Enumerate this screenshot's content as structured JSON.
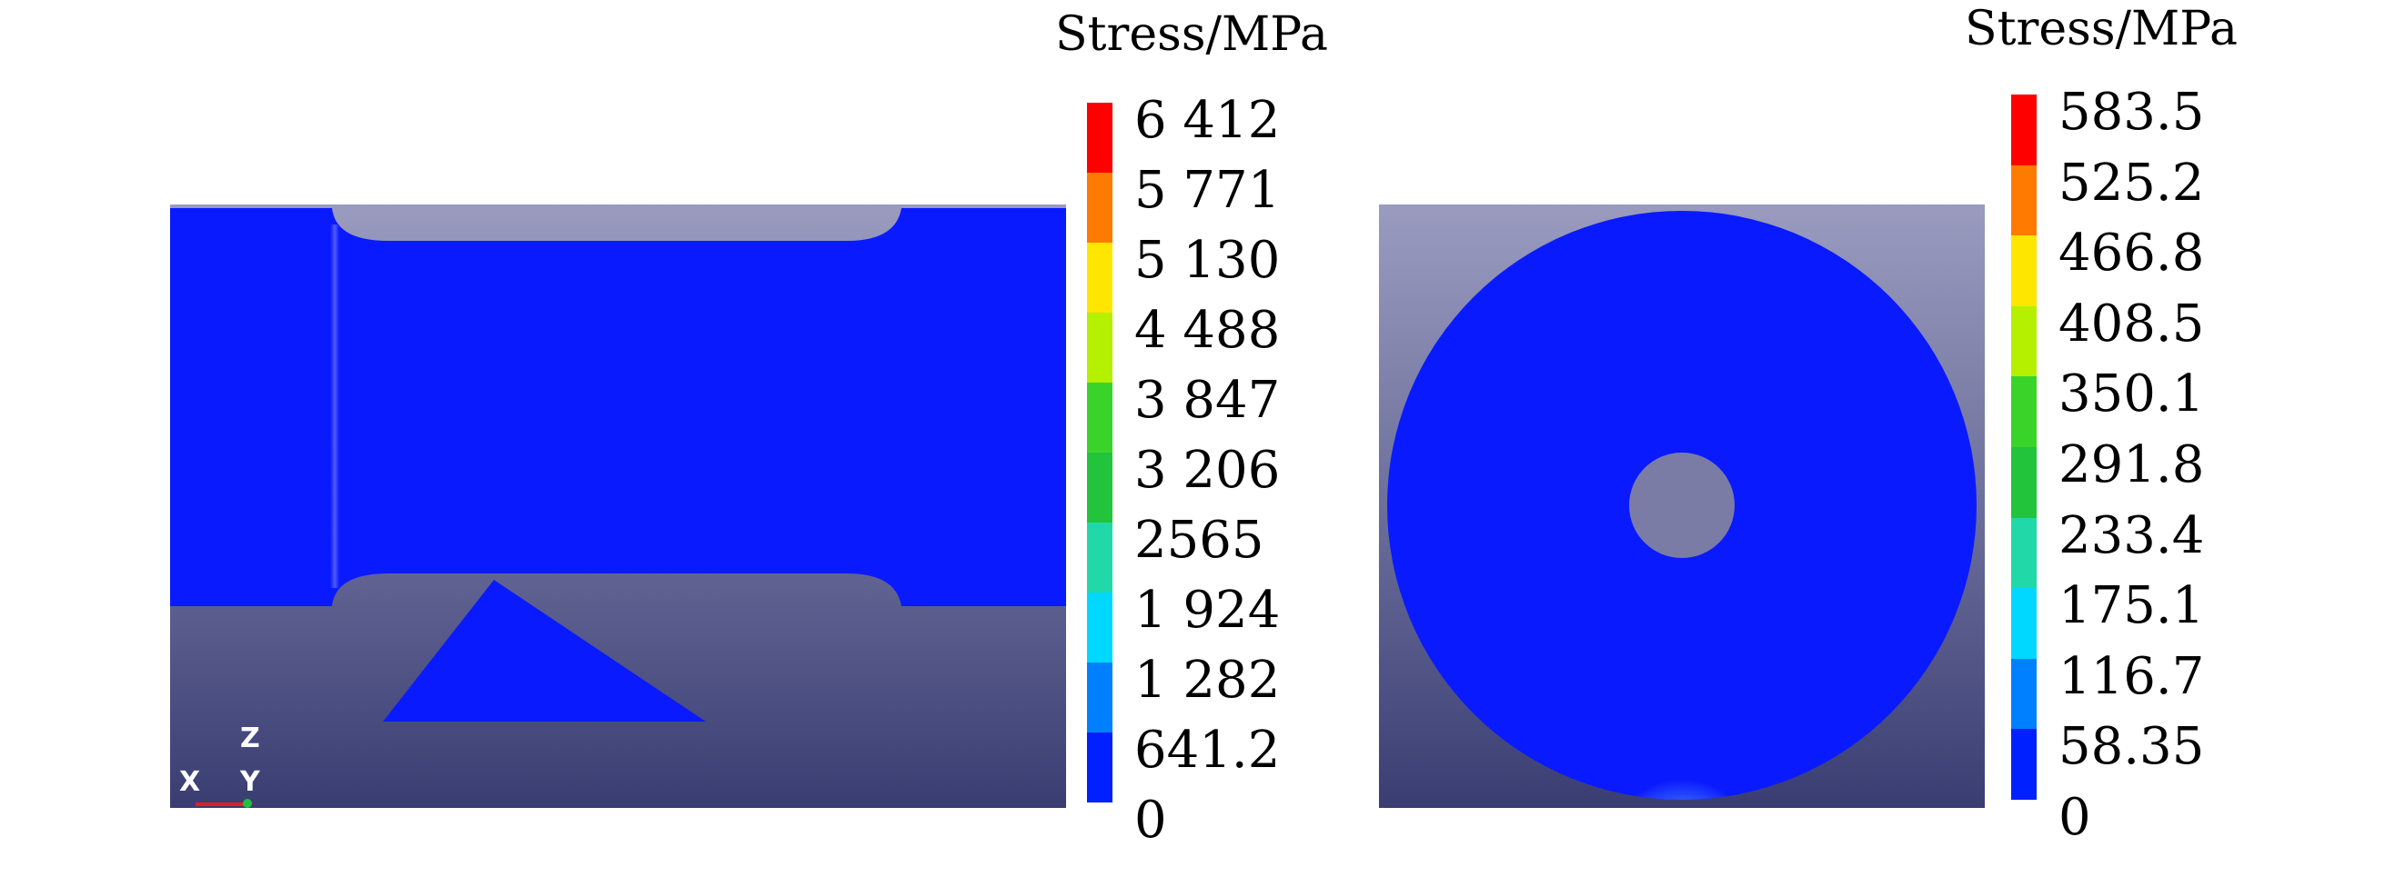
{
  "left_view": {
    "legend": {
      "title": "Stress/MPa",
      "labels": [
        "6 412",
        "5 771",
        "5 130",
        "4 488",
        "3 847",
        "3 206",
        "2565",
        "1 924",
        "1 282",
        "641.2",
        "0"
      ],
      "colors": [
        "#ff0000",
        "#ff7a00",
        "#ffe600",
        "#b4f000",
        "#3ad32a",
        "#22c43c",
        "#20d8a8",
        "#00d8ff",
        "#0080ff",
        "#0020ff"
      ]
    },
    "triad": {
      "z": "Z",
      "x": "X",
      "y": "Y"
    }
  },
  "right_view": {
    "legend": {
      "title": "Stress/MPa",
      "labels": [
        "583.5",
        "525.2",
        "466.8",
        "408.5",
        "350.1",
        "291.8",
        "233.4",
        "175.1",
        "116.7",
        "58.35",
        "0"
      ],
      "colors": [
        "#ff0000",
        "#ff7a00",
        "#ffe600",
        "#b4f000",
        "#3ad32a",
        "#22c43c",
        "#20d8a8",
        "#00d8ff",
        "#0080ff",
        "#0020ff"
      ]
    }
  },
  "colors": {
    "model_blue": "#0a1aff",
    "background_top": "#9a9bbf",
    "background_bottom": "#3a3d72"
  }
}
